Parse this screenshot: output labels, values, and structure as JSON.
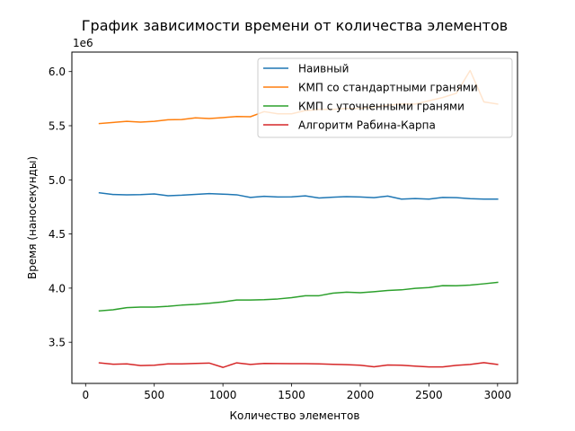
{
  "chart_data": {
    "type": "line",
    "title": "График зависимости времени от количества элементов",
    "xlabel": "Количество элементов",
    "ylabel": "Время (наносекунды)",
    "y_offset_label": "1e6",
    "xlim": [
      -100,
      3145
    ],
    "ylim": [
      3.12,
      6.18
    ],
    "x_ticks": [
      0,
      500,
      1000,
      1500,
      2000,
      2500,
      3000
    ],
    "y_ticks": [
      3.5,
      4.0,
      4.5,
      5.0,
      5.5,
      6.0
    ],
    "x_tick_labels": [
      "0",
      "500",
      "1000",
      "1500",
      "2000",
      "2500",
      "3000"
    ],
    "y_tick_labels": [
      "3.5",
      "4.0",
      "4.5",
      "5.0",
      "5.5",
      "6.0"
    ],
    "legend_position": "top-right",
    "grid": false,
    "x": [
      100,
      200,
      300,
      400,
      500,
      600,
      700,
      800,
      900,
      1000,
      1100,
      1200,
      1300,
      1400,
      1500,
      1600,
      1700,
      1800,
      1900,
      2000,
      2100,
      2200,
      2300,
      2400,
      2500,
      2600,
      2700,
      2800,
      2900,
      3000
    ],
    "series": [
      {
        "name": "Наивный",
        "color": "#1f77b4",
        "values": [
          4.88,
          4.865,
          4.862,
          4.863,
          4.87,
          4.853,
          4.858,
          4.866,
          4.873,
          4.868,
          4.862,
          4.838,
          4.848,
          4.842,
          4.843,
          4.852,
          4.832,
          4.84,
          4.845,
          4.842,
          4.836,
          4.85,
          4.822,
          4.827,
          4.822,
          4.838,
          4.836,
          4.826,
          4.822,
          4.822
        ]
      },
      {
        "name": "КМП со стандартными гранями",
        "color": "#ff7f0e",
        "values": [
          5.52,
          5.53,
          5.54,
          5.533,
          5.54,
          5.555,
          5.557,
          5.573,
          5.566,
          5.575,
          5.585,
          5.583,
          5.63,
          5.61,
          5.61,
          5.64,
          5.65,
          5.65,
          5.66,
          5.66,
          5.67,
          5.69,
          5.7,
          5.7,
          5.73,
          5.76,
          5.8,
          6.01,
          5.72,
          5.7
        ]
      },
      {
        "name": "КМП с уточненными гранями",
        "color": "#2ca02c",
        "values": [
          3.79,
          3.8,
          3.82,
          3.825,
          3.825,
          3.832,
          3.843,
          3.85,
          3.86,
          3.873,
          3.89,
          3.89,
          3.893,
          3.9,
          3.912,
          3.93,
          3.93,
          3.953,
          3.963,
          3.958,
          3.967,
          3.978,
          3.984,
          3.998,
          4.005,
          4.023,
          4.022,
          4.028,
          4.04,
          4.053
        ]
      },
      {
        "name": "Алгоритм Рабина-Карпа",
        "color": "#d62728",
        "values": [
          3.31,
          3.297,
          3.3,
          3.285,
          3.288,
          3.3,
          3.3,
          3.305,
          3.308,
          3.268,
          3.31,
          3.295,
          3.305,
          3.303,
          3.302,
          3.302,
          3.3,
          3.296,
          3.293,
          3.288,
          3.273,
          3.29,
          3.288,
          3.28,
          3.272,
          3.272,
          3.287,
          3.295,
          3.312,
          3.295
        ]
      }
    ]
  }
}
